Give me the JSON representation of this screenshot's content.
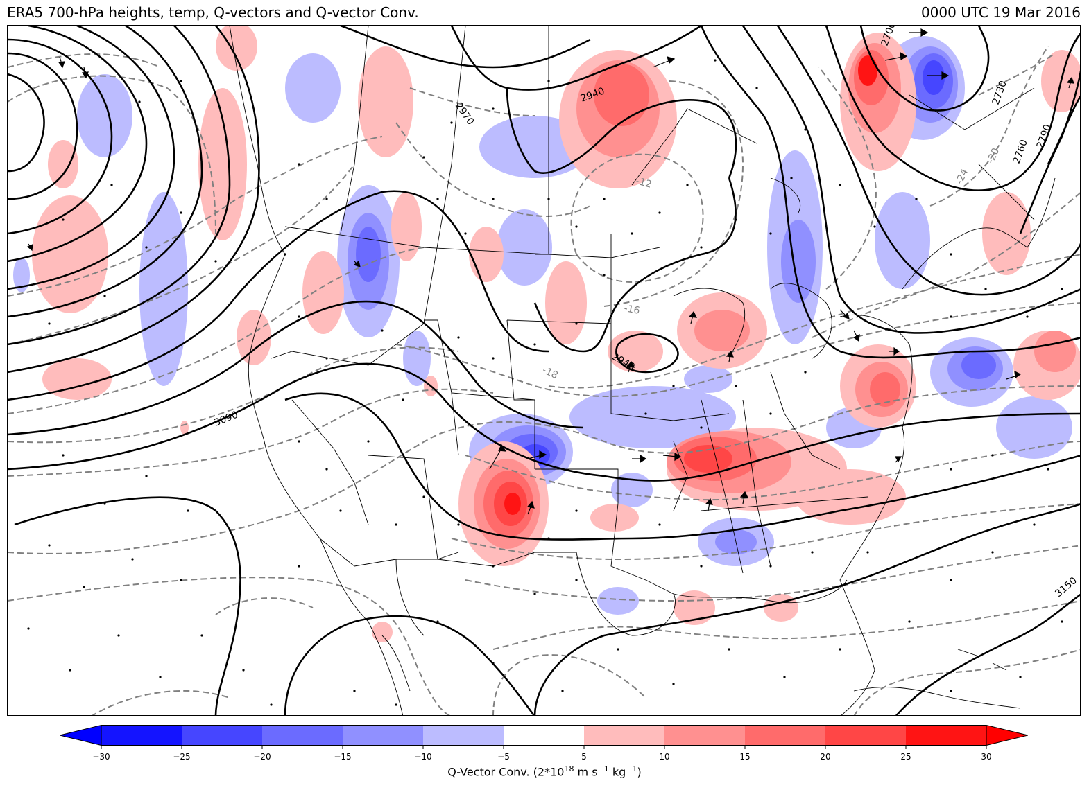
{
  "header": {
    "title": "ERA5 700-hPa heights, temp, Q-vectors and Q-vector Conv.",
    "valid_time": "0000 UTC 19 Mar 2016"
  },
  "map": {
    "height_labels": [
      "2970",
      "2940",
      "2940",
      "3090",
      "2730",
      "2760",
      "2790",
      "3150",
      "2700"
    ],
    "temp_labels": [
      "-12",
      "-16",
      "-18",
      "-24",
      "-20"
    ],
    "colors": {
      "height_contour": "#000000",
      "temp_contour": "#808080",
      "boundaries": "#000000"
    }
  },
  "colorbar": {
    "ticks": [
      "−30",
      "−25",
      "−20",
      "−15",
      "−10",
      "−5",
      "5",
      "10",
      "15",
      "20",
      "25",
      "30"
    ],
    "label_main": "Q-Vector Conv. (2*10",
    "label_exp1": "18",
    "label_mid": " m s",
    "label_exp2": "−1",
    "label_mid2": " kg",
    "label_exp3": "−1",
    "label_end": ")",
    "colors": [
      "#0000ff",
      "#1414ff",
      "#4646ff",
      "#6b6bff",
      "#9090ff",
      "#bcbcff",
      "#ffffff",
      "#ffbcbc",
      "#ff9090",
      "#ff6b6b",
      "#ff4646",
      "#ff1414",
      "#ff0000"
    ]
  }
}
